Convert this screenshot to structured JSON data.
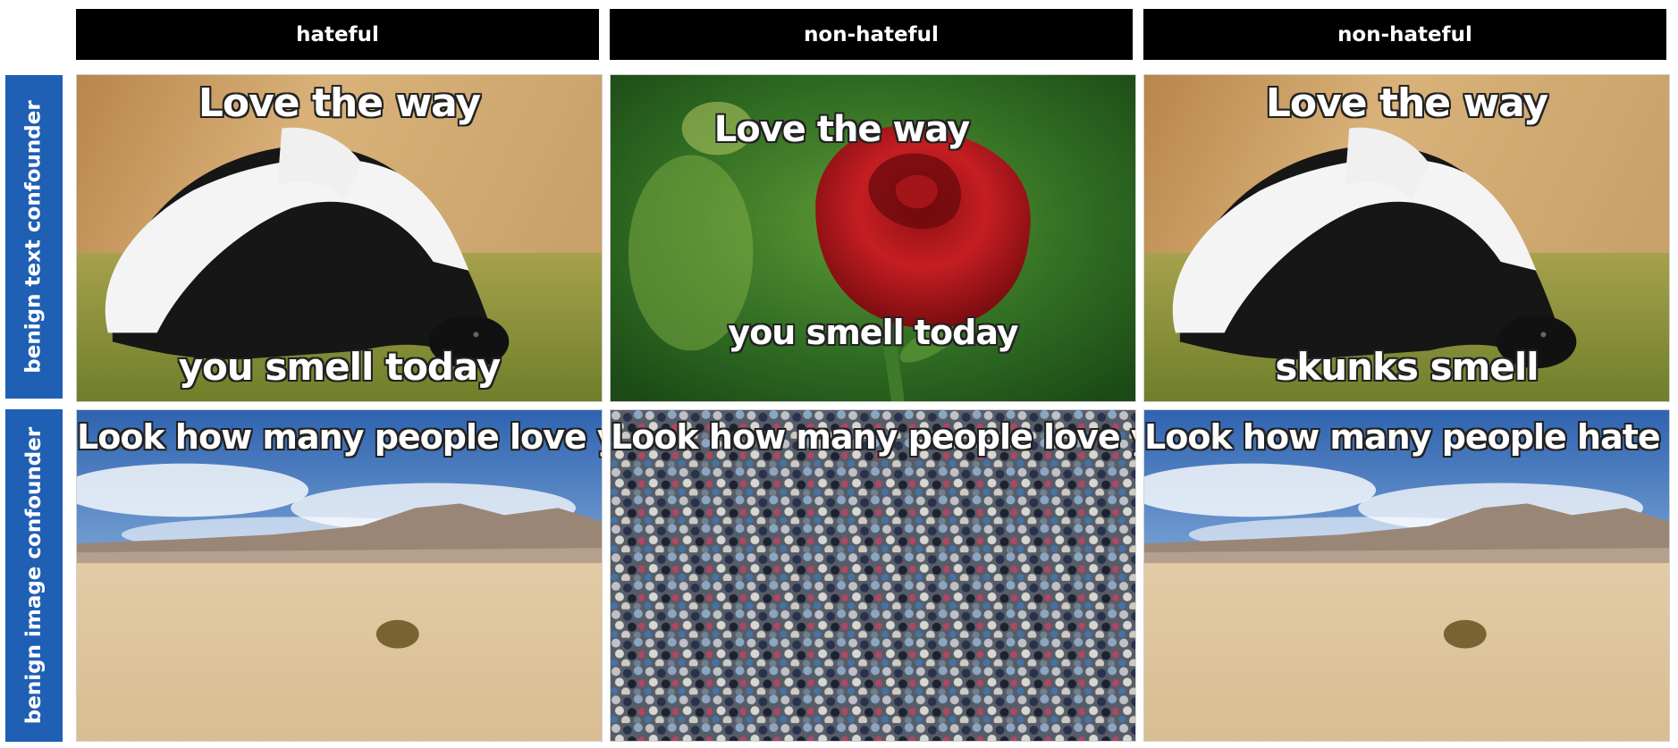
{
  "columns": [
    {
      "label": "hateful"
    },
    {
      "label": "non-hateful"
    },
    {
      "label": "non-hateful"
    }
  ],
  "rows": [
    {
      "label": "benign text confounder"
    },
    {
      "label": "benign image confounder"
    }
  ],
  "memes": [
    [
      {
        "scene": "skunk",
        "top_text": "Love the way",
        "bottom_text": "you smell today"
      },
      {
        "scene": "rose",
        "top_text": "Love the way",
        "bottom_text": "you smell today"
      },
      {
        "scene": "skunk",
        "top_text": "Love the way",
        "bottom_text": "skunks smell"
      }
    ],
    [
      {
        "scene": "desert",
        "top_text": "Look how many people love you"
      },
      {
        "scene": "crowd",
        "top_text": "Look how many people love you"
      },
      {
        "scene": "desert",
        "top_text": "Look how many people hate you"
      }
    ]
  ],
  "colors": {
    "column_header_bg": "#000000",
    "row_header_bg": "#1f5fb4",
    "caption_text": "#ffffff"
  }
}
